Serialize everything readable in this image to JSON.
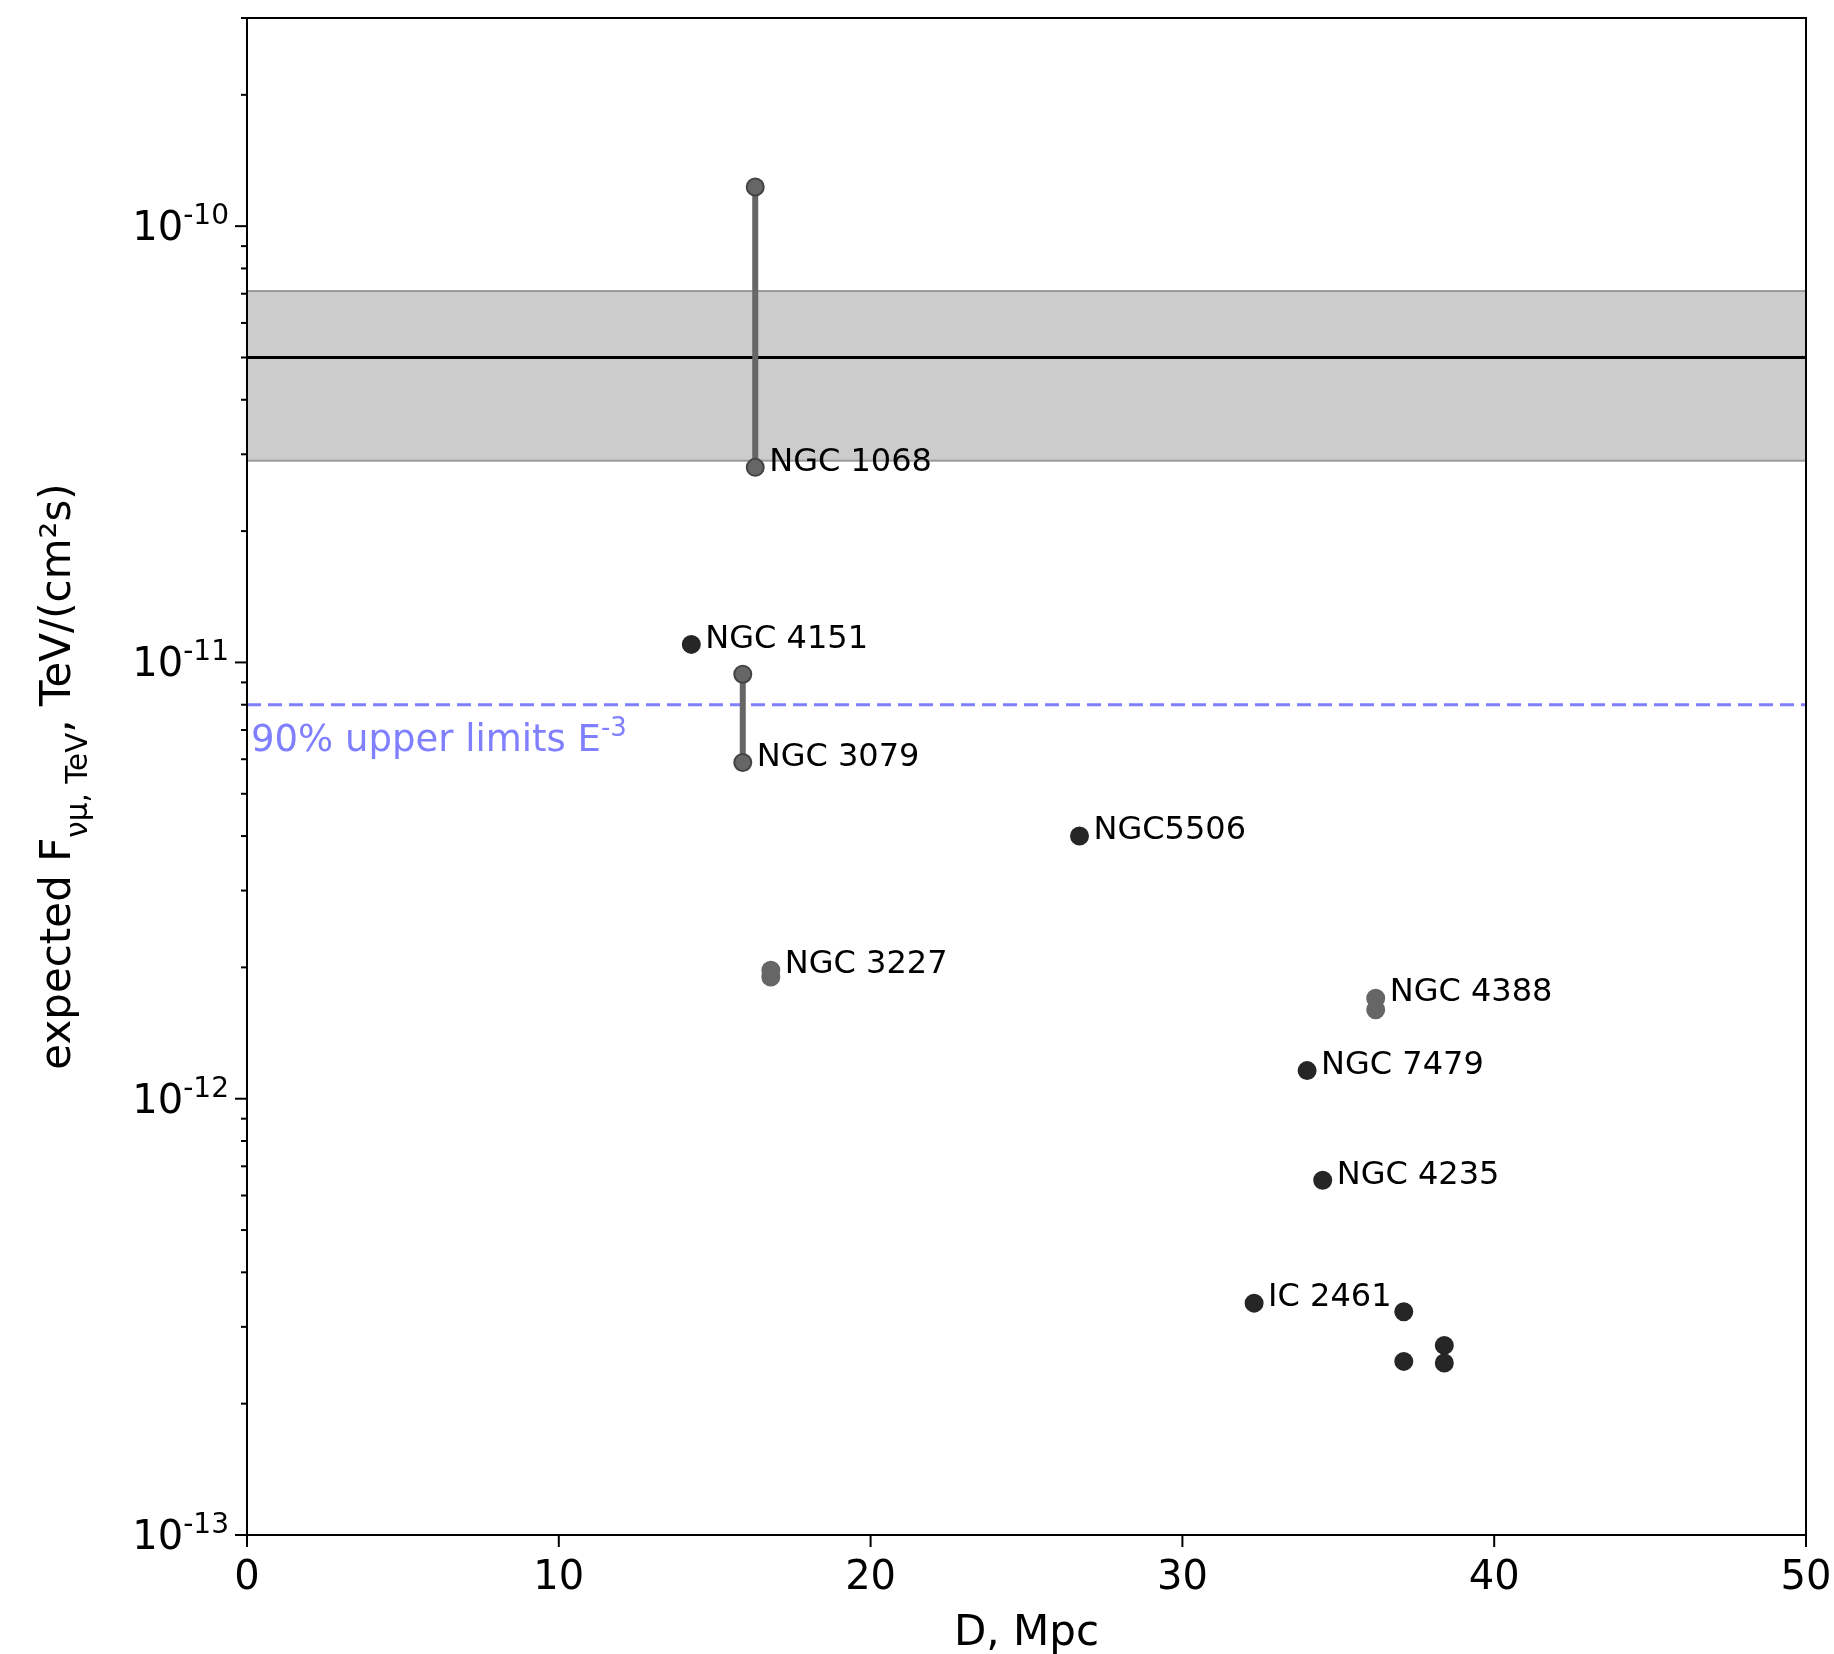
{
  "chart_data": {
    "type": "scatter",
    "xlabel": "D, Mpc",
    "ylabel": "expected F$_{νμ, TeV}$, TeV/(cm²s)",
    "log": "y",
    "marker": "circle",
    "grid": false,
    "xlim": [
      0,
      50
    ],
    "xticks": [
      0,
      10,
      20,
      30,
      40,
      50
    ],
    "ylim": [
      1e-13,
      3e-10
    ],
    "yticks": [
      {
        "value": 1e-13,
        "label": "10$^{-13}$"
      },
      {
        "value": 2e-13,
        "label": null
      },
      {
        "value": 3e-13,
        "label": null
      },
      {
        "value": 4e-13,
        "label": null
      },
      {
        "value": 5e-13,
        "label": null
      },
      {
        "value": 6e-13,
        "label": null
      },
      {
        "value": 7e-13,
        "label": null
      },
      {
        "value": 8e-13,
        "label": null
      },
      {
        "value": 9e-13,
        "label": null
      },
      {
        "value": 1e-12,
        "label": "10$^{-12}$"
      },
      {
        "value": 2e-12,
        "label": null
      },
      {
        "value": 3e-12,
        "label": null
      },
      {
        "value": 4e-12,
        "label": null
      },
      {
        "value": 5e-12,
        "label": null
      },
      {
        "value": 6e-12,
        "label": null
      },
      {
        "value": 7e-12,
        "label": null
      },
      {
        "value": 8e-12,
        "label": null
      },
      {
        "value": 9e-12,
        "label": null
      },
      {
        "value": 1e-11,
        "label": "10$^{-11}$"
      },
      {
        "value": 2e-11,
        "label": null
      },
      {
        "value": 3e-11,
        "label": null
      },
      {
        "value": 4e-11,
        "label": null
      },
      {
        "value": 5e-11,
        "label": null
      },
      {
        "value": 6e-11,
        "label": null
      },
      {
        "value": 7e-11,
        "label": null
      },
      {
        "value": 8e-11,
        "label": null
      },
      {
        "value": 9e-11,
        "label": null
      },
      {
        "value": 1e-10,
        "label": "10$^{-10}$"
      },
      {
        "value": 2e-10,
        "label": null
      },
      {
        "value": 3e-10,
        "label": null
      }
    ],
    "bands": [
      {
        "axis": "y",
        "from": 2.9e-11,
        "to": 7.1e-11,
        "color": "#cccccc"
      }
    ],
    "ref_lines": [
      {
        "axis": "y",
        "value": 5e-11,
        "color": "#000000",
        "line_style": "solid"
      },
      {
        "axis": "y",
        "value": 8e-12,
        "label": "90% upper limits E$^{-3}$",
        "color": "#7f7fff",
        "line_style": "dashed"
      }
    ],
    "series": [
      {
        "color": "#262626",
        "x": [
          14.25,
          26.7,
          34.0,
          34.5,
          32.3,
          37.1,
          38.4,
          37.1,
          38.4
        ],
        "values": [
          1.1e-11,
          4e-12,
          1.16e-12,
          6.5e-13,
          3.4e-13,
          3.25e-13,
          2.72e-13,
          2.5e-13,
          2.48e-13
        ]
      },
      {
        "type": "line",
        "color": "#666666",
        "x": [
          16.3,
          16.3
        ],
        "values": [
          1.23e-10,
          2.8e-11
        ]
      },
      {
        "type": "line",
        "color": "#666666",
        "x": [
          15.9,
          15.9
        ],
        "values": [
          9.4e-12,
          5.9e-12
        ]
      },
      {
        "type": "scatter",
        "color": "#666666",
        "x": [
          16.8,
          16.8
        ],
        "values": [
          1.97e-12,
          1.9e-12
        ]
      },
      {
        "type": "scatter",
        "color": "#666666",
        "x": [
          36.2,
          36.2
        ],
        "values": [
          1.7e-12,
          1.6e-12
        ]
      }
    ],
    "annotations": [
      {
        "text": "NGC 1068",
        "x": 16.3,
        "y": 2.8e-11
      },
      {
        "text": "NGC 4151",
        "x": 14.25,
        "y": 1.1e-11
      },
      {
        "text": "NGC 3079",
        "x": 15.9,
        "y": 5.9e-12
      },
      {
        "text": "NGC5506",
        "x": 26.7,
        "y": 4e-12
      },
      {
        "text": "NGC 3227",
        "x": 16.8,
        "y": 1.97e-12
      },
      {
        "text": "NGC 4388",
        "x": 36.2,
        "y": 1.7e-12
      },
      {
        "text": "NGC 7479",
        "x": 34.0,
        "y": 1.16e-12
      },
      {
        "text": "NGC 4235",
        "x": 34.5,
        "y": 6.5e-13
      },
      {
        "text": "IC 2461",
        "x": 32.3,
        "y": 3.4e-13
      }
    ]
  }
}
